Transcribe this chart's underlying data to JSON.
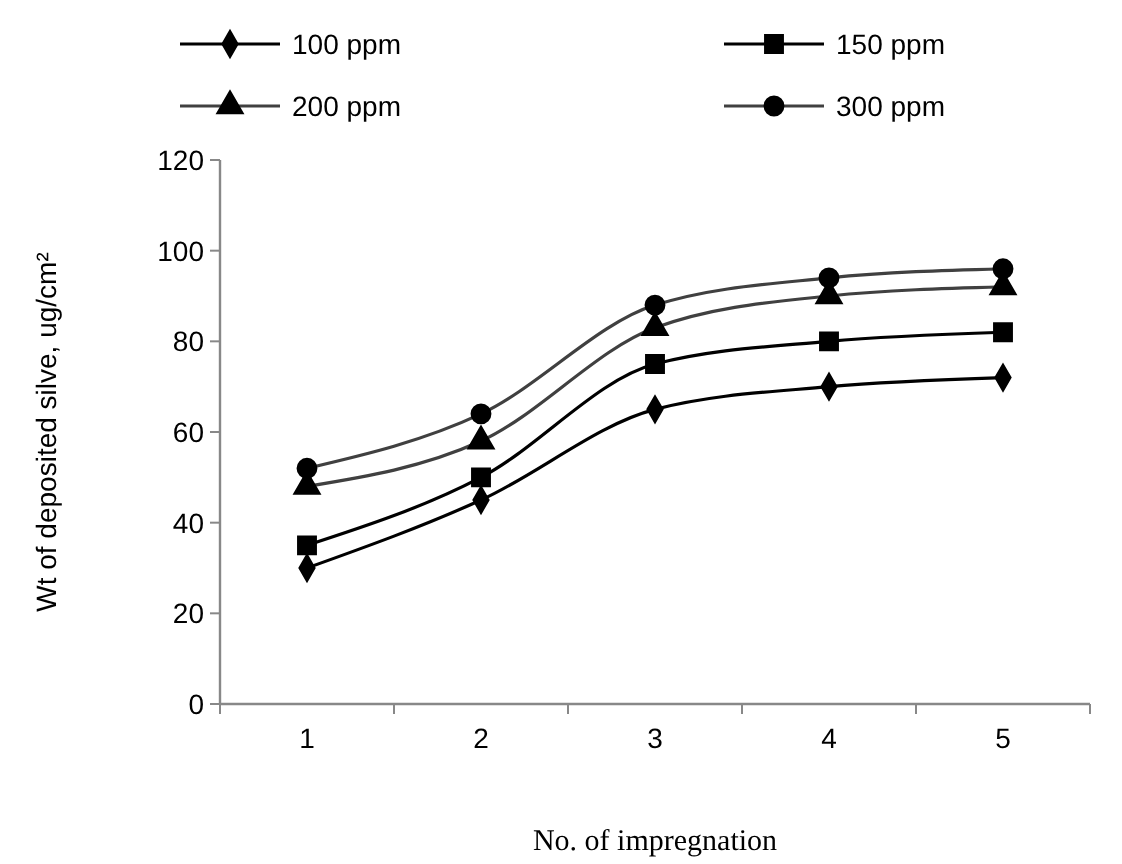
{
  "chart_data": {
    "type": "line",
    "xlabel": "No. of impregnation",
    "ylabel": "Wt of deposited silve, ug/cm²",
    "categories": [
      "1",
      "2",
      "3",
      "4",
      "5"
    ],
    "ylim": [
      0,
      120
    ],
    "yticks": [
      0,
      20,
      40,
      60,
      80,
      100,
      120
    ],
    "grid": false,
    "legend": "top",
    "line_style": "solid",
    "series": [
      {
        "name": "100 ppm",
        "color": "#000000",
        "marker": "diamond",
        "values": [
          30,
          45,
          65,
          70,
          72
        ]
      },
      {
        "name": "150 ppm",
        "color": "#000000",
        "marker": "square",
        "values": [
          35,
          50,
          75,
          80,
          82
        ]
      },
      {
        "name": "200 ppm",
        "color": "#404040",
        "marker": "triangle",
        "values": [
          48,
          58,
          83,
          90,
          92
        ]
      },
      {
        "name": "300 ppm",
        "color": "#404040",
        "marker": "circle",
        "values": [
          52,
          64,
          88,
          94,
          96
        ]
      }
    ]
  }
}
